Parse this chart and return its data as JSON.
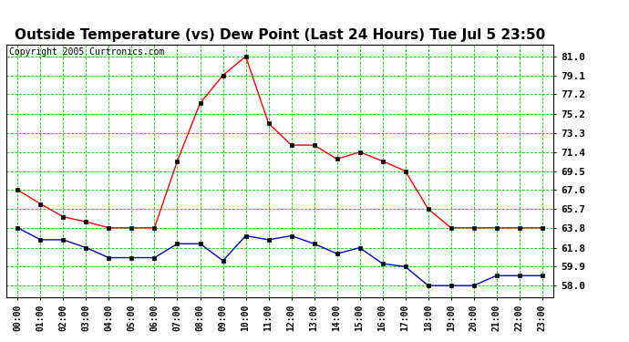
{
  "title": "Outside Temperature (vs) Dew Point (Last 24 Hours) Tue Jul 5 23:50",
  "copyright": "Copyright 2005 Curtronics.com",
  "background_color": "#ffffff",
  "plot_bg_color": "#ffffff",
  "grid_color": "#00cc00",
  "x_labels": [
    "00:00",
    "01:00",
    "02:00",
    "03:00",
    "04:00",
    "05:00",
    "06:00",
    "07:00",
    "08:00",
    "09:00",
    "10:00",
    "11:00",
    "12:00",
    "13:00",
    "14:00",
    "15:00",
    "16:00",
    "17:00",
    "18:00",
    "19:00",
    "20:00",
    "21:00",
    "22:00",
    "23:00"
  ],
  "y_ticks": [
    58.0,
    59.9,
    61.8,
    63.8,
    65.7,
    67.6,
    69.5,
    71.4,
    73.3,
    75.2,
    77.2,
    79.1,
    81.0
  ],
  "y_tick_labels": [
    "58.0",
    "59.9",
    "61.8",
    "63.8",
    "65.7",
    "67.6",
    "69.5",
    "71.4",
    "73.3",
    "75.2",
    "77.2",
    "79.1",
    "81.0"
  ],
  "ylim": [
    56.8,
    82.2
  ],
  "temp_data": [
    67.6,
    66.2,
    64.9,
    64.4,
    63.8,
    63.8,
    63.8,
    70.5,
    76.3,
    79.1,
    81.0,
    74.3,
    72.1,
    72.1,
    70.7,
    71.4,
    70.5,
    69.5,
    65.7,
    63.8,
    63.8,
    63.8,
    63.8,
    63.8
  ],
  "dew_data": [
    63.8,
    62.6,
    62.6,
    61.8,
    60.8,
    60.8,
    60.8,
    62.2,
    62.2,
    60.5,
    63.0,
    62.6,
    63.0,
    62.2,
    61.2,
    61.8,
    60.2,
    59.9,
    58.0,
    58.0,
    58.0,
    59.0,
    59.0,
    59.0
  ],
  "temp_color": "#ff0000",
  "dew_color": "#0000cc",
  "line_width": 1.0,
  "marker": "s",
  "marker_size": 2.5,
  "title_fontsize": 11,
  "copyright_fontsize": 7,
  "tick_fontsize": 8,
  "xtick_fontsize": 7
}
